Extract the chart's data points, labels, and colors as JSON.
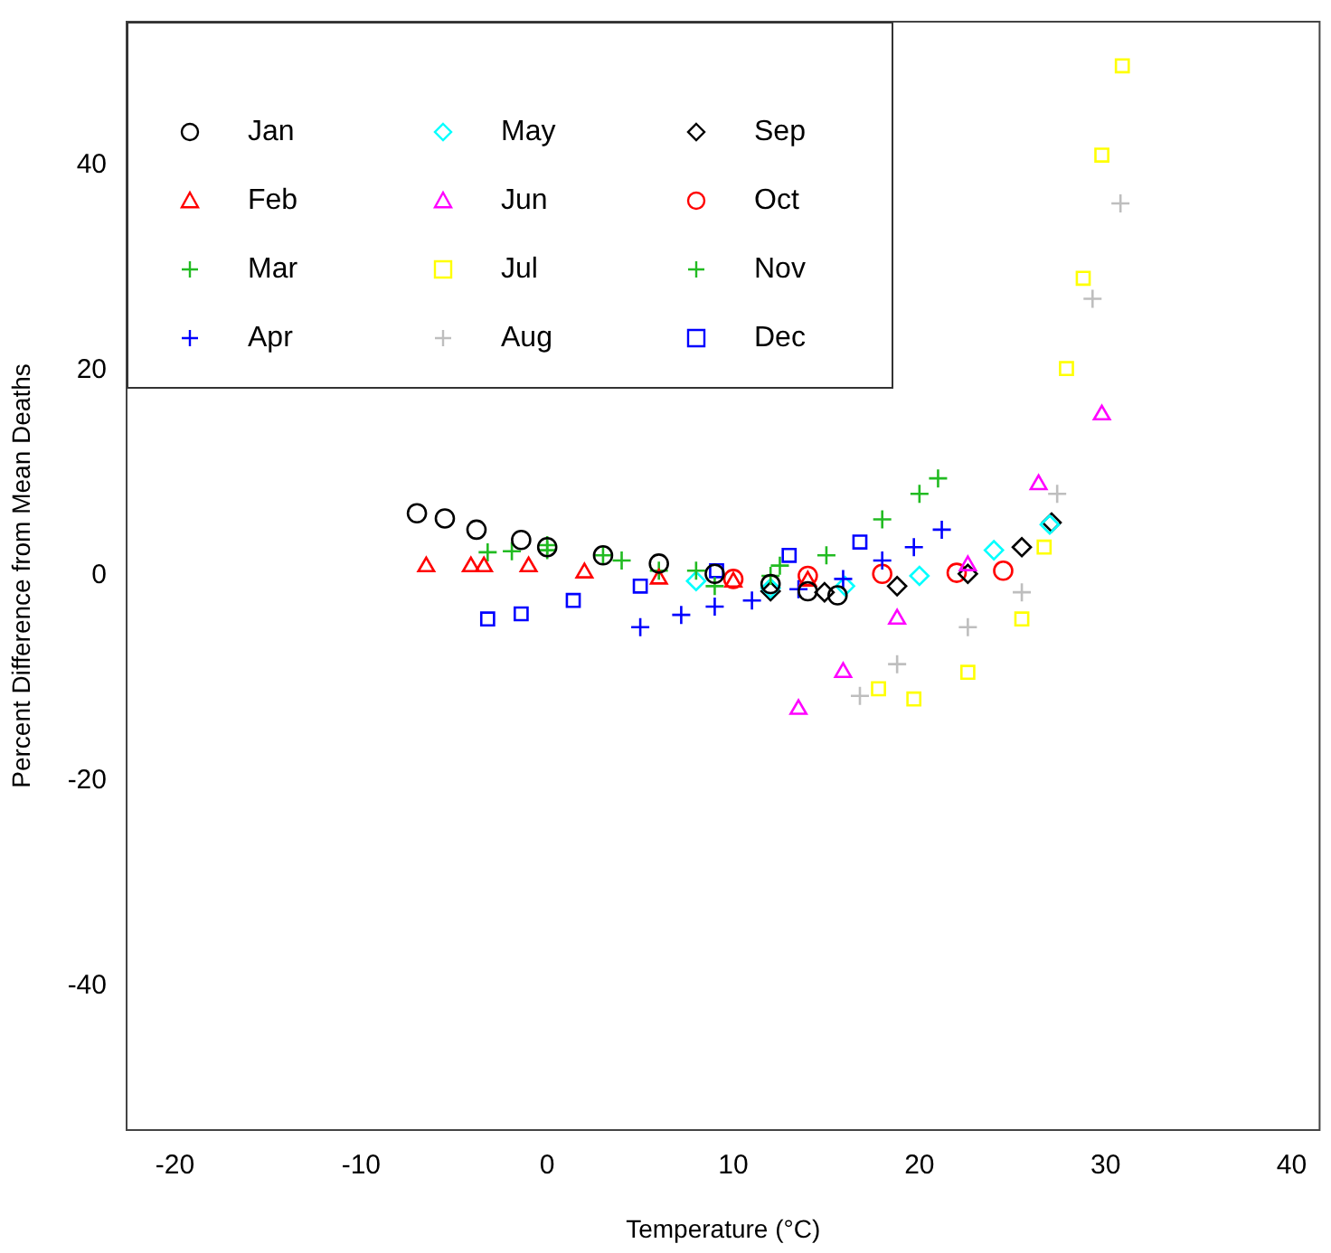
{
  "chart_data": {
    "type": "scatter",
    "xlabel": "Temperature (°C)",
    "ylabel": "Percent Difference from Mean Deaths",
    "xlim": [
      -22.6,
      41.5
    ],
    "ylim": [
      -54,
      54
    ],
    "xticks": [
      -20,
      -10,
      0,
      10,
      20,
      30,
      40
    ],
    "yticks": [
      -40,
      -20,
      0,
      20,
      40
    ],
    "grid": false,
    "legend": "top left",
    "series": [
      {
        "name": "Jan",
        "color": "#000000",
        "marker": "circle",
        "x": [
          -7,
          -5.5,
          -3.8,
          -1.4,
          0,
          3,
          6,
          9,
          12,
          14,
          15.6
        ],
        "values": [
          6.1,
          5.6,
          4.5,
          3.5,
          2.8,
          2,
          1.2,
          0.2,
          -0.8,
          -1.5,
          -1.9
        ]
      },
      {
        "name": "Feb",
        "color": "#ff0000",
        "marker": "triangle",
        "x": [
          -6.5,
          -4.1,
          -3.4,
          -1,
          2,
          6,
          10,
          14
        ],
        "values": [
          0.9,
          0.9,
          0.9,
          0.9,
          0.3,
          -0.3,
          -0.6,
          -0.5
        ]
      },
      {
        "name": "Mar",
        "color": "#22bb22",
        "marker": "cross",
        "x": [
          -3.2,
          -1.9,
          0,
          4,
          8,
          12
        ],
        "values": [
          2.3,
          2.4,
          2.5,
          1.5,
          0.5,
          0
        ]
      },
      {
        "name": "Apr",
        "color": "#0000ff",
        "marker": "cross",
        "x": [
          5,
          7.2,
          9,
          11,
          13.5,
          15.9,
          18,
          19.7,
          21.2
        ],
        "values": [
          -5,
          -3.8,
          -3,
          -2.4,
          -1.3,
          -0.3,
          1.5,
          2.8,
          4.5
        ]
      },
      {
        "name": "May",
        "color": "#00ffff",
        "marker": "diamond",
        "x": [
          8,
          12,
          16,
          20,
          24,
          27
        ],
        "values": [
          -0.5,
          -1.2,
          -1,
          0,
          2.5,
          5
        ]
      },
      {
        "name": "Jun",
        "color": "#ff00ff",
        "marker": "triangle",
        "x": [
          13.5,
          15.9,
          18.8,
          22.6,
          26.4,
          29.8
        ],
        "values": [
          -13,
          -9.4,
          -4.2,
          1,
          8.9,
          15.7
        ]
      },
      {
        "name": "Jul",
        "color": "#ffff00",
        "marker": "square",
        "x": [
          17.8,
          19.7,
          22.6,
          25.5,
          26.7,
          27.9,
          28.8,
          29.8,
          30.9
        ],
        "values": [
          -11,
          -12,
          -9.4,
          -4.2,
          2.8,
          20.2,
          29,
          41,
          49.7
        ]
      },
      {
        "name": "Aug",
        "color": "#bebebe",
        "marker": "cross",
        "x": [
          16.8,
          18.8,
          22.6,
          25.5,
          27.4,
          29.3,
          30.8
        ],
        "values": [
          -11.7,
          -8.6,
          -5,
          -1.6,
          8,
          27,
          36.3
        ]
      },
      {
        "name": "Sep",
        "color": "#000000",
        "marker": "diamond",
        "x": [
          12,
          14.9,
          18.8,
          22.6,
          25.5,
          27.1
        ],
        "values": [
          -1.5,
          -1.6,
          -1,
          0.2,
          2.8,
          5.2
        ]
      },
      {
        "name": "Oct",
        "color": "#ff0000",
        "marker": "circle",
        "x": [
          10,
          14,
          18,
          22,
          24.5
        ],
        "values": [
          -0.3,
          0,
          0.2,
          0.3,
          0.5
        ]
      },
      {
        "name": "Nov",
        "color": "#22bb22",
        "marker": "cross",
        "x": [
          0,
          3,
          6,
          9,
          12.5,
          15,
          18,
          20,
          21
        ],
        "values": [
          3,
          2,
          0.5,
          -1,
          1,
          2,
          5.5,
          8,
          9.5
        ]
      },
      {
        "name": "Dec",
        "color": "#0000ff",
        "marker": "square",
        "x": [
          -3.2,
          -1.4,
          1.4,
          5,
          9.1,
          13,
          16.8
        ],
        "values": [
          -4.2,
          -3.7,
          -2.4,
          -1,
          0.5,
          2,
          3.3
        ]
      }
    ]
  }
}
